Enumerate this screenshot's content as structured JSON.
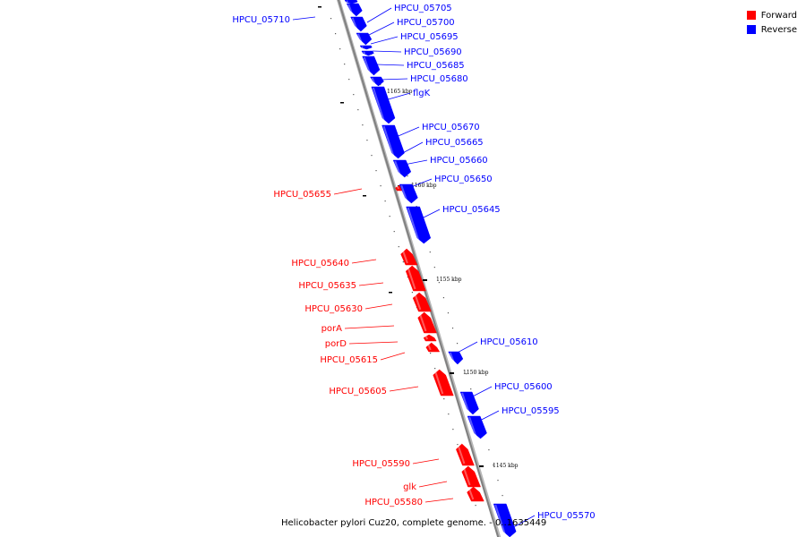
{
  "legend": [
    {
      "label": "Forward",
      "color": "#ff0000"
    },
    {
      "label": "Reverse",
      "color": "#0000ff"
    }
  ],
  "caption": "Helicobacter pylori Cuz20, complete genome. - 0..1635449",
  "colors": {
    "forward": "#ff0000",
    "reverse": "#0000ff",
    "backbone": "#808080"
  },
  "ticks": [
    "1165 kbp",
    "1160 kbp",
    "1155 kbp",
    "1150 kbp",
    "1145 kbp"
  ],
  "genes": [
    {
      "label": "HPCU_05710",
      "strand": "reverse"
    },
    {
      "label": "HPCU_05705",
      "strand": "reverse"
    },
    {
      "label": "HPCU_05700",
      "strand": "reverse"
    },
    {
      "label": "HPCU_05695",
      "strand": "reverse"
    },
    {
      "label": "HPCU_05690",
      "strand": "reverse"
    },
    {
      "label": "HPCU_05685",
      "strand": "reverse"
    },
    {
      "label": "HPCU_05680",
      "strand": "reverse"
    },
    {
      "label": "flgK",
      "strand": "reverse"
    },
    {
      "label": "HPCU_05670",
      "strand": "reverse"
    },
    {
      "label": "HPCU_05665",
      "strand": "reverse"
    },
    {
      "label": "HPCU_05660",
      "strand": "reverse"
    },
    {
      "label": "HPCU_05655",
      "strand": "forward"
    },
    {
      "label": "HPCU_05650",
      "strand": "reverse"
    },
    {
      "label": "HPCU_05645",
      "strand": "reverse"
    },
    {
      "label": "HPCU_05640",
      "strand": "forward"
    },
    {
      "label": "HPCU_05635",
      "strand": "forward"
    },
    {
      "label": "HPCU_05630",
      "strand": "forward"
    },
    {
      "label": "porA",
      "strand": "forward"
    },
    {
      "label": "porD",
      "strand": "forward"
    },
    {
      "label": "HPCU_05615",
      "strand": "forward"
    },
    {
      "label": "HPCU_05610",
      "strand": "reverse"
    },
    {
      "label": "HPCU_05605",
      "strand": "forward"
    },
    {
      "label": "HPCU_05600",
      "strand": "reverse"
    },
    {
      "label": "HPCU_05595",
      "strand": "reverse"
    },
    {
      "label": "HPCU_05590",
      "strand": "forward"
    },
    {
      "label": "glk",
      "strand": "forward"
    },
    {
      "label": "HPCU_05580",
      "strand": "forward"
    },
    {
      "label": "HPCU_05570",
      "strand": "reverse"
    }
  ]
}
